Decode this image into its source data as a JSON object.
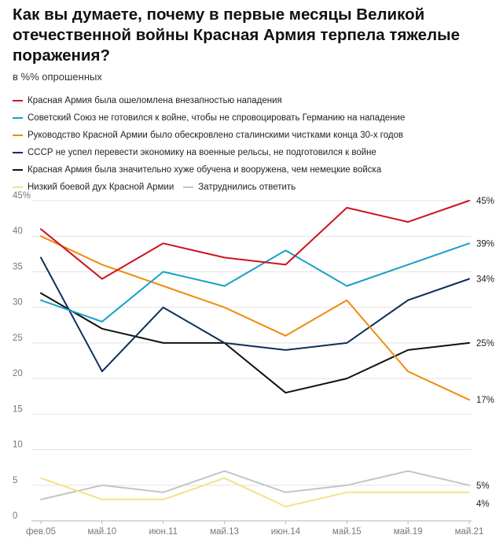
{
  "title": "Как вы думаете, почему в первые месяцы Великой отечественной войны Красная Армия терпела тяжелые поражения?",
  "subtitle": "в %% опрошенных",
  "chart_data": {
    "type": "line",
    "title": "Как вы думаете, почему в первые месяцы Великой отечественной войны Красная Армия терпела тяжелые поражения?",
    "ylabel": "в %% опрошенных",
    "xlabel": "",
    "ylim": [
      0,
      45
    ],
    "yticks": [
      0,
      5,
      10,
      15,
      20,
      25,
      30,
      35,
      40,
      45
    ],
    "ytick_labels": [
      "0",
      "5",
      "10",
      "15",
      "20",
      "25",
      "30",
      "35",
      "40",
      "45%"
    ],
    "grid": true,
    "categories": [
      "фев.05",
      "май.10",
      "июн.11",
      "май.13",
      "июн.14",
      "май.15",
      "май.19",
      "май.21"
    ],
    "series": [
      {
        "name": "Красная Армия была ошеломлена внезапностью нападения",
        "color": "#d0121f",
        "values": [
          41,
          34,
          39,
          37,
          36,
          44,
          42,
          45
        ],
        "end_label": "45%"
      },
      {
        "name": "Советский Союз не готовился к войне, чтобы не спровоцировать Германию на нападение",
        "color": "#15a0c8",
        "values": [
          31,
          28,
          35,
          33,
          38,
          33,
          36,
          39
        ],
        "end_label": "39%"
      },
      {
        "name": "Руководство Красной Армии было обескровлено сталинскими чистками конца 30-х годов",
        "color": "#ef8c0c",
        "values": [
          40,
          36,
          33,
          30,
          26,
          31,
          21,
          17
        ],
        "end_label": "17%"
      },
      {
        "name": "СССР не успел перевести экономику на военные рельсы, не подготовился к войне",
        "color": "#0c2f5a",
        "values": [
          37,
          21,
          30,
          25,
          24,
          25,
          31,
          34
        ],
        "end_label": "34%"
      },
      {
        "name": "Красная Армия была значительно хуже обучена и вооружена, чем немецкие войска",
        "color": "#111111",
        "values": [
          32,
          27,
          25,
          25,
          18,
          20,
          24,
          25
        ],
        "end_label": "25%"
      },
      {
        "name": "Низкий боевой дух Красной Армии",
        "color": "#f7e089",
        "values": [
          6,
          3,
          3,
          6,
          2,
          4,
          4,
          4
        ],
        "end_label": "4%"
      },
      {
        "name": "Затруднились ответить",
        "color": "#c4c4c4",
        "values": [
          3,
          5,
          4,
          7,
          4,
          5,
          7,
          5
        ],
        "end_label": "5%"
      }
    ]
  }
}
